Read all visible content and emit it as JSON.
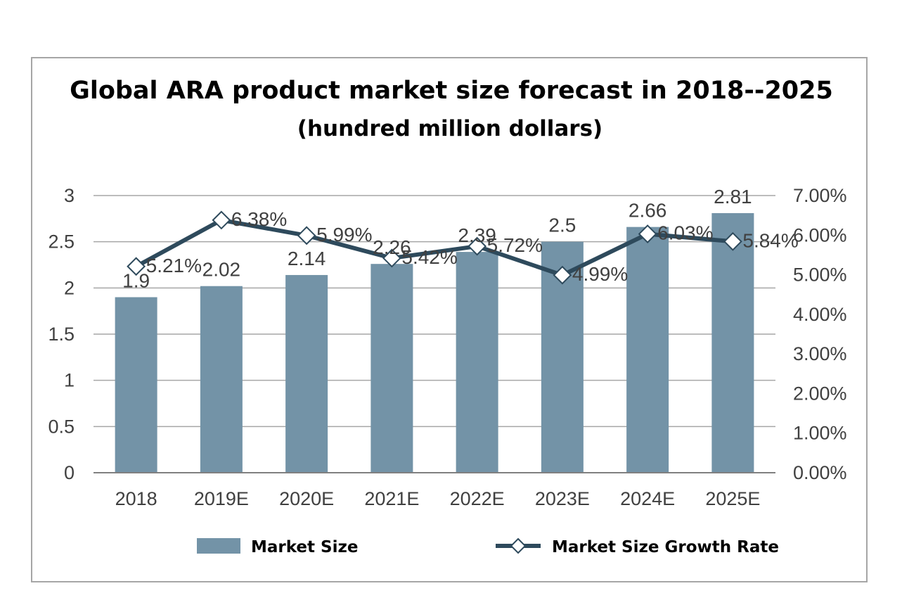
{
  "chart_data": {
    "type": "bar",
    "title": "Global ARA product market size forecast in 2018--2025",
    "subtitle": "(hundred million dollars)",
    "categories": [
      "2018",
      "2019E",
      "2020E",
      "2021E",
      "2022E",
      "2023E",
      "2024E",
      "2025E"
    ],
    "series": [
      {
        "name": "Market Size",
        "type": "bar",
        "axis": "left",
        "values": [
          1.9,
          2.02,
          2.14,
          2.26,
          2.39,
          2.5,
          2.66,
          2.81
        ],
        "labels": [
          "1.9",
          "2.02",
          "2.14",
          "2.26",
          "2.39",
          "2.5",
          "2.66",
          "2.81"
        ],
        "color": "#7393a7"
      },
      {
        "name": "Market Size Growth Rate",
        "type": "line",
        "axis": "right",
        "values": [
          5.21,
          6.38,
          5.99,
          5.42,
          5.72,
          4.99,
          6.03,
          5.84
        ],
        "labels": [
          "5.21%",
          "6.38%",
          "5.99%",
          "5.42%",
          "5.72%",
          "4.99%",
          "6.03%",
          "5.84%"
        ],
        "color": "#2e4a5c"
      }
    ],
    "y_left": {
      "ylim": [
        0,
        3
      ],
      "ticks": [
        0,
        0.5,
        1,
        1.5,
        2,
        2.5,
        3
      ],
      "tick_labels": [
        "0",
        "0.5",
        "1",
        "1.5",
        "2",
        "2.5",
        "3"
      ]
    },
    "y_right": {
      "ylim": [
        0,
        7
      ],
      "ticks": [
        0,
        1,
        2,
        3,
        4,
        5,
        6,
        7
      ],
      "tick_labels": [
        "0.00%",
        "1.00%",
        "2.00%",
        "3.00%",
        "4.00%",
        "5.00%",
        "6.00%",
        "7.00%"
      ]
    },
    "grid": true,
    "legend": "bottom",
    "xlabel": "",
    "ylabel": ""
  }
}
